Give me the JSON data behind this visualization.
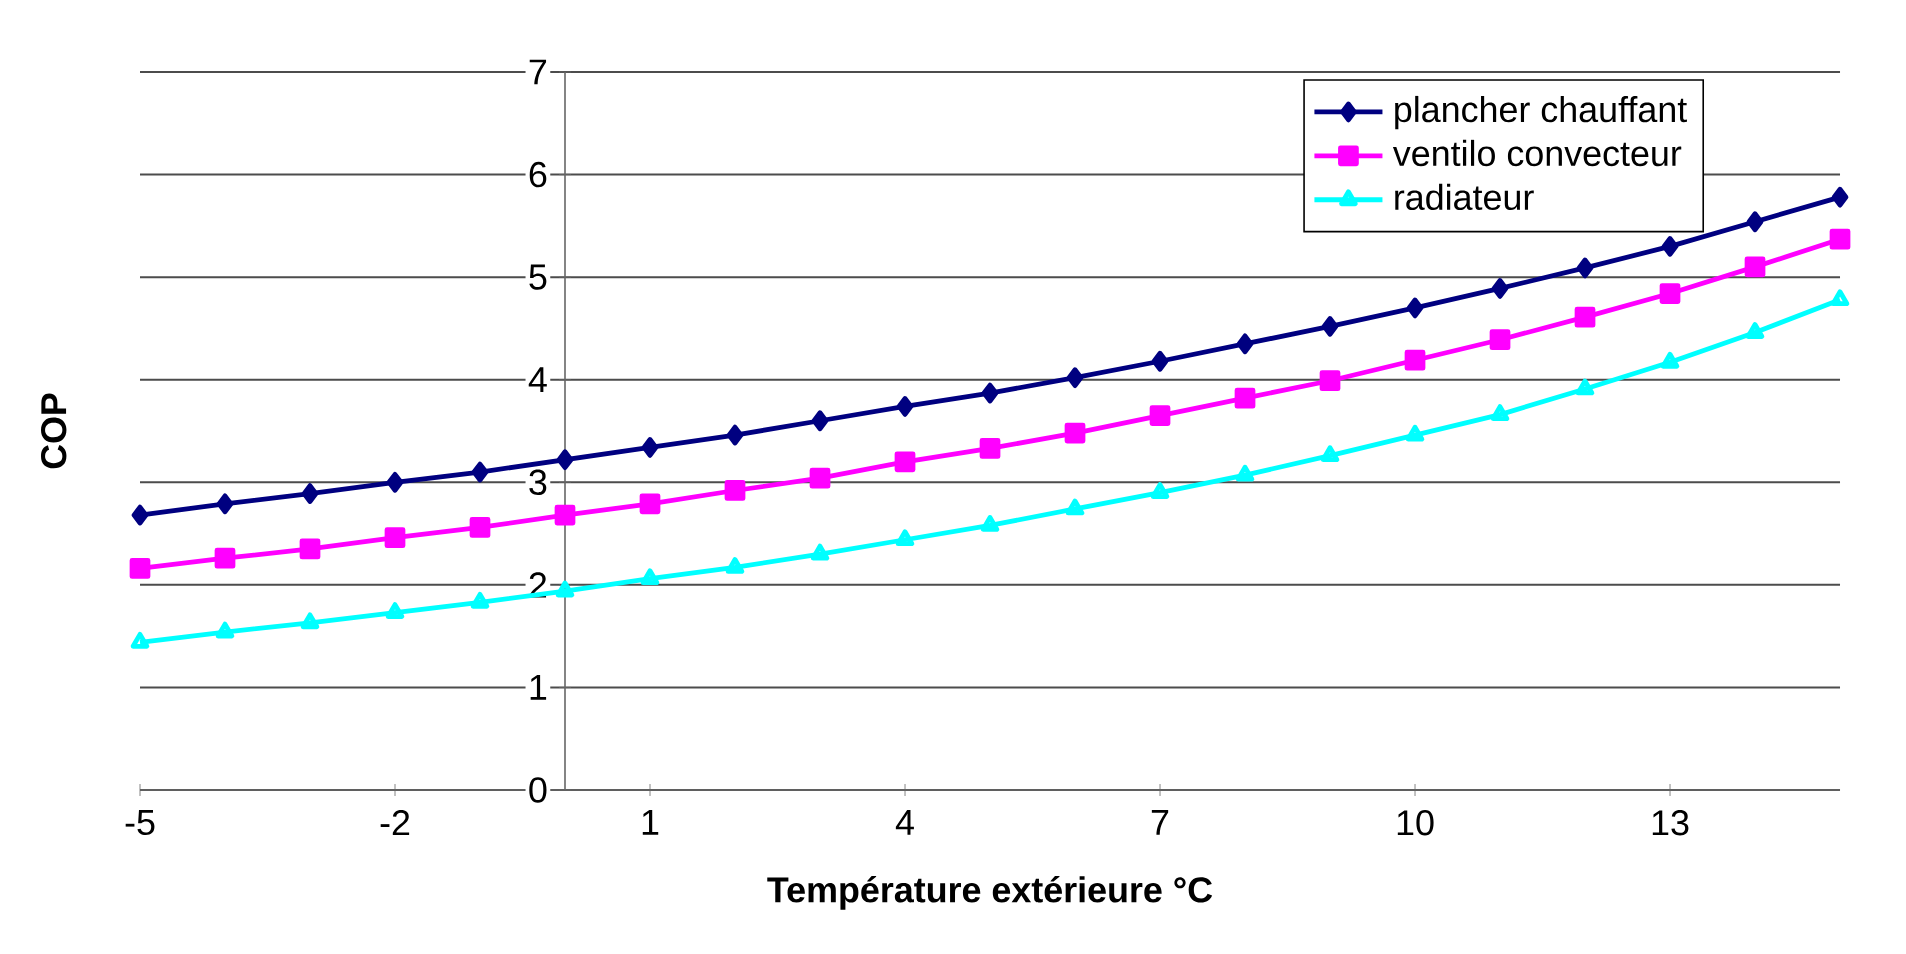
{
  "chart_data": {
    "type": "line",
    "xlabel": "Température extérieure °C",
    "ylabel": "COP",
    "x": [
      -5,
      -4,
      -3,
      -2,
      -1,
      0,
      1,
      2,
      3,
      4,
      5,
      6,
      7,
      8,
      9,
      10,
      11,
      12,
      13,
      14,
      15
    ],
    "series": [
      {
        "name": "plancher chauffant",
        "color": "#000080",
        "marker": "diamond",
        "values": [
          2.68,
          2.79,
          2.89,
          3.0,
          3.1,
          3.22,
          3.34,
          3.46,
          3.6,
          3.74,
          3.87,
          4.02,
          4.18,
          4.35,
          4.52,
          4.7,
          4.89,
          5.09,
          5.3,
          5.54,
          5.78
        ]
      },
      {
        "name": "ventilo convecteur",
        "color": "#ff00ff",
        "marker": "square",
        "values": [
          2.16,
          2.26,
          2.35,
          2.46,
          2.56,
          2.68,
          2.79,
          2.92,
          3.04,
          3.2,
          3.33,
          3.48,
          3.65,
          3.82,
          3.99,
          4.19,
          4.39,
          4.61,
          4.84,
          5.1,
          5.37
        ]
      },
      {
        "name": "radiateur",
        "color": "#00ffff",
        "marker": "triangle",
        "values": [
          1.44,
          1.54,
          1.63,
          1.73,
          1.83,
          1.94,
          2.06,
          2.17,
          2.3,
          2.44,
          2.58,
          2.74,
          2.9,
          3.07,
          3.26,
          3.46,
          3.66,
          3.91,
          4.17,
          4.46,
          4.78
        ]
      }
    ],
    "xlim": [
      -5,
      15
    ],
    "xticks": [
      -5,
      -2,
      1,
      4,
      7,
      10,
      13
    ],
    "ylim": [
      0,
      7
    ],
    "yticks": [
      0,
      1,
      2,
      3,
      4,
      5,
      6,
      7
    ],
    "grid": "y",
    "legend": "top right"
  }
}
